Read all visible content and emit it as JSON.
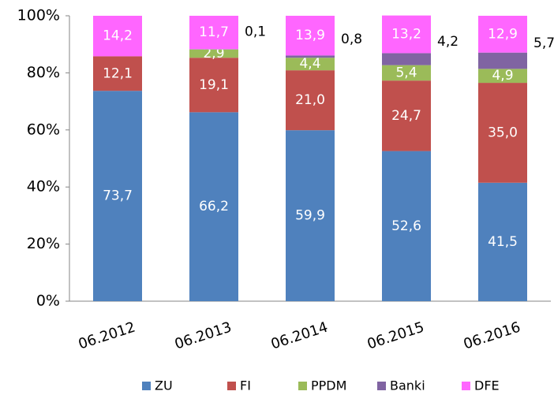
{
  "chart_data": {
    "type": "stacked_bar",
    "categories": [
      "06.2012",
      "06.2013",
      "06.2014",
      "06.2015",
      "06.2016"
    ],
    "series": [
      {
        "name": "ZU",
        "color": "#4f81bd",
        "values": [
          73.7,
          66.2,
          59.9,
          52.6,
          41.5
        ],
        "value_labels": [
          "73,7",
          "66,2",
          "59,9",
          "52,6",
          "41,5"
        ]
      },
      {
        "name": "FI",
        "color": "#c0504d",
        "values": [
          12.1,
          19.1,
          21.0,
          24.7,
          35.0
        ],
        "value_labels": [
          "12,1",
          "19,1",
          "21,0",
          "24,7",
          "35,0"
        ]
      },
      {
        "name": "PPDM",
        "color": "#9bbb59",
        "values": [
          null,
          2.9,
          4.4,
          5.4,
          4.9
        ],
        "value_labels": [
          null,
          "2,9",
          "4,4",
          "5,4",
          "4,9"
        ]
      },
      {
        "name": "Banki",
        "color": "#8064a2",
        "values": [
          null,
          0.1,
          0.8,
          4.2,
          5.7
        ],
        "value_labels": [
          null,
          "0,1",
          "0,8",
          "4,2",
          "5,7"
        ],
        "label_position": "right"
      },
      {
        "name": "DFE",
        "color": "#ff66ff",
        "values": [
          14.2,
          11.7,
          13.9,
          13.2,
          12.9
        ],
        "value_labels": [
          "14,2",
          "11,7",
          "13,9",
          "13,2",
          "12,9"
        ]
      }
    ],
    "ylim": [
      0,
      100
    ],
    "yticks": [
      {
        "value": 0,
        "label": "0%"
      },
      {
        "value": 20,
        "label": "20%"
      },
      {
        "value": 40,
        "label": "40%"
      },
      {
        "value": 60,
        "label": "60%"
      },
      {
        "value": 80,
        "label": "80%"
      },
      {
        "value": 100,
        "label": "100%"
      }
    ],
    "legend": "bottom",
    "grid": false
  }
}
